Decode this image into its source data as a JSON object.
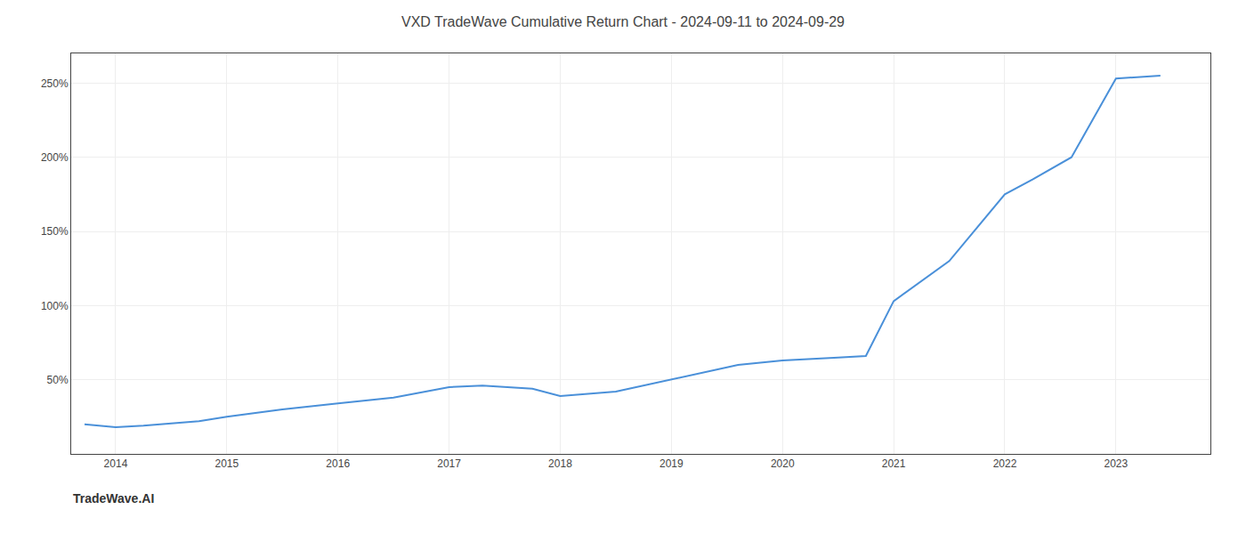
{
  "chart_data": {
    "type": "line",
    "title": "VXD TradeWave Cumulative Return Chart - 2024-09-11 to 2024-09-29",
    "annotations": [
      {
        "text": "TradeWave.AI"
      }
    ],
    "x": [
      2013.72,
      2014.0,
      2014.25,
      2014.75,
      2015.0,
      2015.5,
      2016.0,
      2016.5,
      2017.0,
      2017.3,
      2017.75,
      2018.0,
      2018.5,
      2019.0,
      2019.3,
      2019.6,
      2020.0,
      2020.3,
      2020.5,
      2020.75,
      2021.0,
      2021.5,
      2022.0,
      2022.25,
      2022.6,
      2023.0,
      2023.4
    ],
    "values": [
      20,
      18,
      19,
      22,
      25,
      30,
      34,
      38,
      45,
      46,
      44,
      39,
      42,
      50,
      55,
      60,
      63,
      64,
      65,
      66,
      103,
      130,
      175,
      185,
      200,
      253,
      255
    ],
    "color": "#4a90d9",
    "xlim": [
      2013.6,
      2023.85
    ],
    "xticks": [
      2014,
      2015,
      2016,
      2017,
      2018,
      2019,
      2020,
      2021,
      2022,
      2023
    ],
    "ylim": [
      0,
      270
    ],
    "yticks": [
      {
        "value": 50,
        "label": "50%"
      },
      {
        "value": 100,
        "label": "100%"
      },
      {
        "value": 150,
        "label": "150%"
      },
      {
        "value": 200,
        "label": "200%"
      },
      {
        "value": 250,
        "label": "250%"
      }
    ],
    "grid": true
  }
}
